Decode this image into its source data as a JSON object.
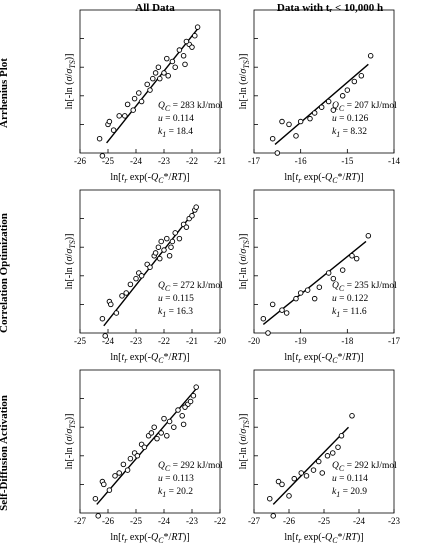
{
  "figure": {
    "col_titles": [
      "All Data",
      "Data with tᵣ < 10,000 h"
    ],
    "row_titles": [
      "Arrhenius Plot",
      "Correlation Optimization",
      "Self-Diffusion Activation"
    ]
  },
  "chart_data": [
    {
      "type": "scatter",
      "row": 0,
      "col": 0,
      "xlim": [
        -26,
        -21
      ],
      "ylim": [
        0,
        0.5
      ],
      "xticks": [
        -26,
        -25,
        -24,
        -23,
        -22,
        -21
      ],
      "xlabel": "ln[tr exp(-QC*/RT)]",
      "ylabel": "ln[-ln (σ/σTS)]",
      "annotations": {
        "Q": "283 kJ/mol",
        "u": "0.114",
        "k": "18.4"
      },
      "fit": [
        [
          -25.05,
          0.035
        ],
        [
          -21.75,
          0.44
        ]
      ],
      "points": [
        [
          -25.3,
          0.05
        ],
        [
          -25.2,
          -0.01
        ],
        [
          -25.0,
          0.1
        ],
        [
          -24.95,
          0.11
        ],
        [
          -24.8,
          0.08
        ],
        [
          -24.6,
          0.13
        ],
        [
          -24.4,
          0.13
        ],
        [
          -24.3,
          0.17
        ],
        [
          -24.1,
          0.15
        ],
        [
          -24.05,
          0.19
        ],
        [
          -23.9,
          0.21
        ],
        [
          -23.8,
          0.18
        ],
        [
          -23.6,
          0.24
        ],
        [
          -23.5,
          0.22
        ],
        [
          -23.4,
          0.26
        ],
        [
          -23.3,
          0.28
        ],
        [
          -23.2,
          0.3
        ],
        [
          -23.15,
          0.26
        ],
        [
          -23.0,
          0.28
        ],
        [
          -22.9,
          0.33
        ],
        [
          -22.85,
          0.27
        ],
        [
          -22.7,
          0.32
        ],
        [
          -22.6,
          0.3
        ],
        [
          -22.45,
          0.36
        ],
        [
          -22.3,
          0.34
        ],
        [
          -22.25,
          0.31
        ],
        [
          -22.1,
          0.38
        ],
        [
          -22.0,
          0.37
        ],
        [
          -21.9,
          0.41
        ],
        [
          -21.8,
          0.44
        ],
        [
          -22.2,
          0.39
        ]
      ]
    },
    {
      "type": "scatter",
      "row": 0,
      "col": 1,
      "xlim": [
        -17,
        -14
      ],
      "ylim": [
        0,
        0.5
      ],
      "xticks": [
        -17,
        -16,
        -15,
        -14
      ],
      "xlabel": "ln[tr exp(-QC*/RT)]",
      "ylabel": "ln[-ln (σ/σTS)]",
      "annotations": {
        "Q": "207 kJ/mol",
        "u": "0.126",
        "k": "8.32"
      },
      "fit": [
        [
          -16.55,
          0.03
        ],
        [
          -14.55,
          0.31
        ]
      ],
      "points": [
        [
          -16.6,
          0.05
        ],
        [
          -16.5,
          0.0
        ],
        [
          -16.4,
          0.11
        ],
        [
          -16.25,
          0.1
        ],
        [
          -16.1,
          0.06
        ],
        [
          -16.0,
          0.11
        ],
        [
          -15.8,
          0.12
        ],
        [
          -15.7,
          0.14
        ],
        [
          -15.55,
          0.16
        ],
        [
          -15.4,
          0.18
        ],
        [
          -15.3,
          0.15
        ],
        [
          -15.1,
          0.2
        ],
        [
          -15.0,
          0.22
        ],
        [
          -14.85,
          0.25
        ],
        [
          -14.7,
          0.27
        ],
        [
          -14.5,
          0.34
        ]
      ]
    },
    {
      "type": "scatter",
      "row": 1,
      "col": 0,
      "xlim": [
        -25,
        -20
      ],
      "ylim": [
        0,
        0.5
      ],
      "xticks": [
        -25,
        -24,
        -23,
        -22,
        -21,
        -20
      ],
      "xlabel": "ln[tr exp(-QC*/RT)]",
      "ylabel": "ln[-ln (σ/σTS)]",
      "annotations": {
        "Q": "272 kJ/mol",
        "u": "0.115",
        "k": "16.3"
      },
      "fit": [
        [
          -24.15,
          0.025
        ],
        [
          -20.8,
          0.44
        ]
      ],
      "points": [
        [
          -24.2,
          0.05
        ],
        [
          -24.1,
          -0.01
        ],
        [
          -23.95,
          0.11
        ],
        [
          -23.9,
          0.1
        ],
        [
          -23.7,
          0.07
        ],
        [
          -23.5,
          0.13
        ],
        [
          -23.35,
          0.14
        ],
        [
          -23.2,
          0.17
        ],
        [
          -23.0,
          0.19
        ],
        [
          -22.9,
          0.21
        ],
        [
          -22.8,
          0.2
        ],
        [
          -22.6,
          0.24
        ],
        [
          -22.5,
          0.23
        ],
        [
          -22.35,
          0.27
        ],
        [
          -22.3,
          0.28
        ],
        [
          -22.2,
          0.3
        ],
        [
          -22.1,
          0.32
        ],
        [
          -22.0,
          0.29
        ],
        [
          -21.9,
          0.33
        ],
        [
          -21.8,
          0.27
        ],
        [
          -21.7,
          0.32
        ],
        [
          -21.6,
          0.35
        ],
        [
          -21.45,
          0.33
        ],
        [
          -21.3,
          0.38
        ],
        [
          -21.2,
          0.37
        ],
        [
          -21.1,
          0.4
        ],
        [
          -21.0,
          0.41
        ],
        [
          -20.9,
          0.43
        ],
        [
          -20.85,
          0.44
        ],
        [
          -21.75,
          0.3
        ],
        [
          -22.15,
          0.26
        ]
      ]
    },
    {
      "type": "scatter",
      "row": 1,
      "col": 1,
      "xlim": [
        -20,
        -17
      ],
      "ylim": [
        0,
        0.5
      ],
      "xticks": [
        -20,
        -19,
        -18,
        -17
      ],
      "xlabel": "ln[tr exp(-QC*/RT)]",
      "ylabel": "ln[-ln (σ/σTS)]",
      "annotations": {
        "Q": "235 kJ/mol",
        "u": "0.122",
        "k": "11.6"
      },
      "fit": [
        [
          -19.8,
          0.03
        ],
        [
          -17.6,
          0.32
        ]
      ],
      "points": [
        [
          -19.8,
          0.05
        ],
        [
          -19.7,
          0.0
        ],
        [
          -19.6,
          0.1
        ],
        [
          -19.4,
          0.08
        ],
        [
          -19.3,
          0.07
        ],
        [
          -19.1,
          0.12
        ],
        [
          -19.0,
          0.14
        ],
        [
          -18.85,
          0.15
        ],
        [
          -18.7,
          0.12
        ],
        [
          -18.6,
          0.16
        ],
        [
          -18.4,
          0.21
        ],
        [
          -18.3,
          0.19
        ],
        [
          -18.1,
          0.22
        ],
        [
          -17.9,
          0.27
        ],
        [
          -17.8,
          0.26
        ],
        [
          -17.55,
          0.34
        ]
      ]
    },
    {
      "type": "scatter",
      "row": 2,
      "col": 0,
      "xlim": [
        -27,
        -22
      ],
      "ylim": [
        0,
        0.5
      ],
      "xticks": [
        -27,
        -26,
        -25,
        -24,
        -23,
        -22
      ],
      "xlabel": "ln[tr exp(-QC*/RT)]",
      "ylabel": "ln[-ln (σ/σTS)]",
      "annotations": {
        "Q": "292 kJ/mol",
        "u": "0.113",
        "k": "20.2"
      },
      "fit": [
        [
          -26.4,
          0.03
        ],
        [
          -22.8,
          0.44
        ]
      ],
      "points": [
        [
          -26.45,
          0.05
        ],
        [
          -26.35,
          -0.01
        ],
        [
          -26.2,
          0.11
        ],
        [
          -26.15,
          0.1
        ],
        [
          -25.95,
          0.08
        ],
        [
          -25.75,
          0.13
        ],
        [
          -25.6,
          0.14
        ],
        [
          -25.45,
          0.17
        ],
        [
          -25.3,
          0.15
        ],
        [
          -25.2,
          0.19
        ],
        [
          -25.05,
          0.21
        ],
        [
          -24.95,
          0.2
        ],
        [
          -24.8,
          0.24
        ],
        [
          -24.7,
          0.23
        ],
        [
          -24.55,
          0.27
        ],
        [
          -24.45,
          0.28
        ],
        [
          -24.35,
          0.3
        ],
        [
          -24.25,
          0.26
        ],
        [
          -24.1,
          0.28
        ],
        [
          -24.0,
          0.33
        ],
        [
          -23.9,
          0.27
        ],
        [
          -23.8,
          0.32
        ],
        [
          -23.65,
          0.3
        ],
        [
          -23.5,
          0.36
        ],
        [
          -23.35,
          0.34
        ],
        [
          -23.3,
          0.31
        ],
        [
          -23.15,
          0.38
        ],
        [
          -23.05,
          0.39
        ],
        [
          -22.95,
          0.41
        ],
        [
          -22.85,
          0.44
        ],
        [
          -23.25,
          0.37
        ]
      ]
    },
    {
      "type": "scatter",
      "row": 2,
      "col": 1,
      "xlim": [
        -27,
        -23
      ],
      "ylim": [
        0,
        0.5
      ],
      "xticks": [
        -27,
        -26,
        -25,
        -24,
        -23
      ],
      "xlabel": "ln[tr exp(-QC*/RT)]",
      "ylabel": "ln[-ln (σ/σTS)]",
      "annotations": {
        "Q": "292 kJ/mol",
        "u": "0.114",
        "k": "20.9"
      },
      "fit": [
        [
          -26.45,
          0.03
        ],
        [
          -24.3,
          0.3
        ]
      ],
      "points": [
        [
          -26.55,
          0.05
        ],
        [
          -26.45,
          -0.01
        ],
        [
          -26.3,
          0.11
        ],
        [
          -26.2,
          0.1
        ],
        [
          -26.0,
          0.06
        ],
        [
          -25.85,
          0.12
        ],
        [
          -25.65,
          0.14
        ],
        [
          -25.5,
          0.13
        ],
        [
          -25.3,
          0.15
        ],
        [
          -25.15,
          0.18
        ],
        [
          -25.05,
          0.14
        ],
        [
          -24.9,
          0.2
        ],
        [
          -24.75,
          0.21
        ],
        [
          -24.6,
          0.23
        ],
        [
          -24.5,
          0.27
        ],
        [
          -24.2,
          0.34
        ]
      ]
    }
  ]
}
